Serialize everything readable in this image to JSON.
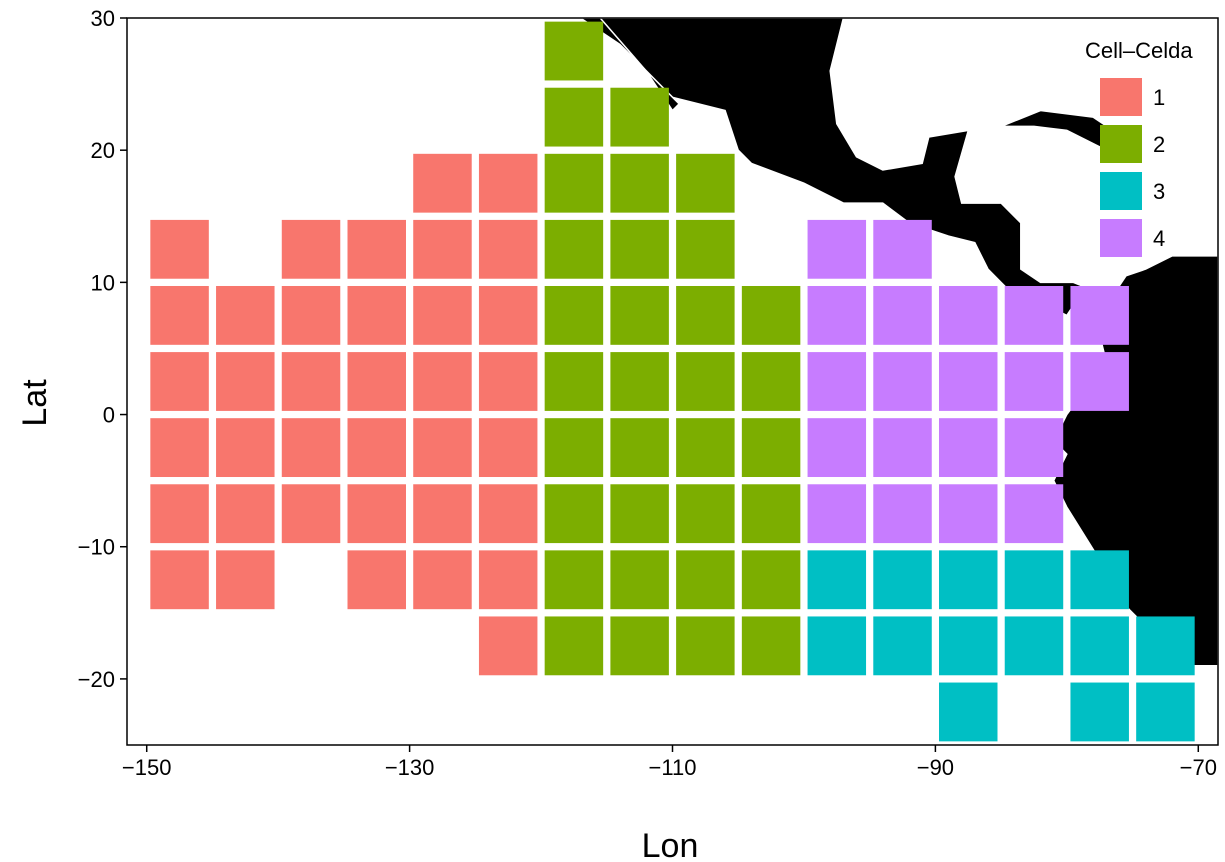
{
  "chart_data": {
    "type": "heatmap",
    "xlabel": "Lon",
    "ylabel": "Lat",
    "xlim": [
      -151.5,
      -68.5
    ],
    "ylim": [
      -25,
      30
    ],
    "x_ticks": [
      -150,
      -130,
      -110,
      -90,
      -70
    ],
    "y_ticks": [
      30,
      20,
      10,
      0,
      -10,
      -20
    ],
    "x_tick_labels": [
      "−150",
      "−130",
      "−110",
      "−90",
      "−70"
    ],
    "y_tick_labels": [
      "30",
      "20",
      "10",
      "0",
      "−10",
      "−20"
    ],
    "cell_size_deg": 5,
    "legend": {
      "title": "Cell–Celda",
      "entries": [
        {
          "label": "1",
          "color": "#F8766D"
        },
        {
          "label": "2",
          "color": "#7CAE00"
        },
        {
          "label": "3",
          "color": "#00BFC4"
        },
        {
          "label": "4",
          "color": "#C77CFF"
        }
      ]
    },
    "land_color": "#000000",
    "cells": {
      "1": [
        [
          -147.5,
          12.5
        ],
        [
          -137.5,
          12.5
        ],
        [
          -132.5,
          12.5
        ],
        [
          -127.5,
          12.5
        ],
        [
          -122.5,
          12.5
        ],
        [
          -127.5,
          17.5
        ],
        [
          -122.5,
          17.5
        ],
        [
          -147.5,
          7.5
        ],
        [
          -142.5,
          7.5
        ],
        [
          -137.5,
          7.5
        ],
        [
          -132.5,
          7.5
        ],
        [
          -127.5,
          7.5
        ],
        [
          -122.5,
          7.5
        ],
        [
          -147.5,
          2.5
        ],
        [
          -142.5,
          2.5
        ],
        [
          -137.5,
          2.5
        ],
        [
          -132.5,
          2.5
        ],
        [
          -127.5,
          2.5
        ],
        [
          -122.5,
          2.5
        ],
        [
          -147.5,
          -2.5
        ],
        [
          -142.5,
          -2.5
        ],
        [
          -137.5,
          -2.5
        ],
        [
          -132.5,
          -2.5
        ],
        [
          -127.5,
          -2.5
        ],
        [
          -122.5,
          -2.5
        ],
        [
          -147.5,
          -7.5
        ],
        [
          -142.5,
          -7.5
        ],
        [
          -137.5,
          -7.5
        ],
        [
          -132.5,
          -7.5
        ],
        [
          -127.5,
          -7.5
        ],
        [
          -122.5,
          -7.5
        ],
        [
          -147.5,
          -12.5
        ],
        [
          -142.5,
          -12.5
        ],
        [
          -132.5,
          -12.5
        ],
        [
          -127.5,
          -12.5
        ],
        [
          -122.5,
          -12.5
        ],
        [
          -122.5,
          -17.5
        ]
      ],
      "2": [
        [
          -117.5,
          27.5
        ],
        [
          -117.5,
          22.5
        ],
        [
          -112.5,
          22.5
        ],
        [
          -117.5,
          17.5
        ],
        [
          -112.5,
          17.5
        ],
        [
          -107.5,
          17.5
        ],
        [
          -117.5,
          12.5
        ],
        [
          -112.5,
          12.5
        ],
        [
          -107.5,
          12.5
        ],
        [
          -117.5,
          7.5
        ],
        [
          -112.5,
          7.5
        ],
        [
          -107.5,
          7.5
        ],
        [
          -102.5,
          7.5
        ],
        [
          -117.5,
          2.5
        ],
        [
          -112.5,
          2.5
        ],
        [
          -107.5,
          2.5
        ],
        [
          -102.5,
          2.5
        ],
        [
          -117.5,
          -2.5
        ],
        [
          -112.5,
          -2.5
        ],
        [
          -107.5,
          -2.5
        ],
        [
          -102.5,
          -2.5
        ],
        [
          -117.5,
          -7.5
        ],
        [
          -112.5,
          -7.5
        ],
        [
          -107.5,
          -7.5
        ],
        [
          -102.5,
          -7.5
        ],
        [
          -117.5,
          -12.5
        ],
        [
          -112.5,
          -12.5
        ],
        [
          -107.5,
          -12.5
        ],
        [
          -102.5,
          -12.5
        ],
        [
          -117.5,
          -17.5
        ],
        [
          -112.5,
          -17.5
        ],
        [
          -107.5,
          -17.5
        ],
        [
          -102.5,
          -17.5
        ]
      ],
      "3": [
        [
          -97.5,
          -12.5
        ],
        [
          -92.5,
          -12.5
        ],
        [
          -87.5,
          -12.5
        ],
        [
          -82.5,
          -12.5
        ],
        [
          -77.5,
          -12.5
        ],
        [
          -97.5,
          -17.5
        ],
        [
          -92.5,
          -17.5
        ],
        [
          -87.5,
          -17.5
        ],
        [
          -82.5,
          -17.5
        ],
        [
          -77.5,
          -17.5
        ],
        [
          -72.5,
          -17.5
        ],
        [
          -87.5,
          -22.5
        ],
        [
          -77.5,
          -22.5
        ],
        [
          -72.5,
          -22.5
        ]
      ],
      "4": [
        [
          -97.5,
          12.5
        ],
        [
          -92.5,
          12.5
        ],
        [
          -97.5,
          7.5
        ],
        [
          -92.5,
          7.5
        ],
        [
          -87.5,
          7.5
        ],
        [
          -82.5,
          7.5
        ],
        [
          -77.5,
          7.5
        ],
        [
          -97.5,
          2.5
        ],
        [
          -92.5,
          2.5
        ],
        [
          -87.5,
          2.5
        ],
        [
          -82.5,
          2.5
        ],
        [
          -77.5,
          2.5
        ],
        [
          -97.5,
          -2.5
        ],
        [
          -92.5,
          -2.5
        ],
        [
          -87.5,
          -2.5
        ],
        [
          -82.5,
          -2.5
        ],
        [
          -97.5,
          -7.5
        ],
        [
          -92.5,
          -7.5
        ],
        [
          -87.5,
          -7.5
        ],
        [
          -82.5,
          -7.5
        ]
      ]
    },
    "land_polygons": {
      "north_america": [
        [
          -120,
          30
        ],
        [
          -116,
          30
        ],
        [
          -114,
          28
        ],
        [
          -110,
          24
        ],
        [
          -106,
          23
        ],
        [
          -105,
          20
        ],
        [
          -104,
          19
        ],
        [
          -100,
          17.5
        ],
        [
          -97,
          16
        ],
        [
          -94,
          16
        ],
        [
          -92,
          14.5
        ],
        [
          -89,
          13.5
        ],
        [
          -87,
          13
        ],
        [
          -86,
          11
        ],
        [
          -85,
          10
        ],
        [
          -84,
          9
        ],
        [
          -82,
          8.5
        ],
        [
          -80,
          7.5
        ],
        [
          -79,
          9
        ],
        [
          -78,
          8
        ],
        [
          -77,
          9
        ],
        [
          -79.5,
          10
        ],
        [
          -82,
          10
        ],
        [
          -83.5,
          11
        ],
        [
          -83.5,
          14.5
        ],
        [
          -85,
          16
        ],
        [
          -88,
          16
        ],
        [
          -88.5,
          18
        ],
        [
          -87.5,
          21.5
        ],
        [
          -90.5,
          21
        ],
        [
          -91,
          19
        ],
        [
          -94,
          18.5
        ],
        [
          -96,
          19.5
        ],
        [
          -97.5,
          22
        ],
        [
          -98,
          26
        ],
        [
          -97,
          30
        ]
      ],
      "baja": [
        [
          -117,
          30
        ],
        [
          -115.5,
          30
        ],
        [
          -112,
          26
        ],
        [
          -110,
          23
        ],
        [
          -109.5,
          23.5
        ],
        [
          -111,
          25
        ],
        [
          -114,
          28
        ]
      ],
      "south_america": [
        [
          -77,
          9
        ],
        [
          -77.5,
          8
        ],
        [
          -77.5,
          6
        ],
        [
          -77,
          4
        ],
        [
          -78.5,
          2
        ],
        [
          -80,
          0
        ],
        [
          -81,
          -2
        ],
        [
          -80,
          -3
        ],
        [
          -81,
          -5
        ],
        [
          -80,
          -7
        ],
        [
          -77.5,
          -11
        ],
        [
          -76,
          -14
        ],
        [
          -74,
          -16
        ],
        [
          -71,
          -18
        ],
        [
          -70.5,
          -19
        ],
        [
          -68.5,
          -19
        ],
        [
          -68.5,
          12
        ],
        [
          -72,
          12
        ],
        [
          -74,
          11
        ],
        [
          -75.5,
          10.5
        ],
        [
          -76.5,
          9
        ]
      ],
      "cuba": [
        [
          -85,
          21.8
        ],
        [
          -82,
          23
        ],
        [
          -78,
          22.5
        ],
        [
          -75,
          20.5
        ],
        [
          -77,
          20
        ],
        [
          -80,
          21.5
        ],
        [
          -82.5,
          21.8
        ]
      ]
    }
  }
}
